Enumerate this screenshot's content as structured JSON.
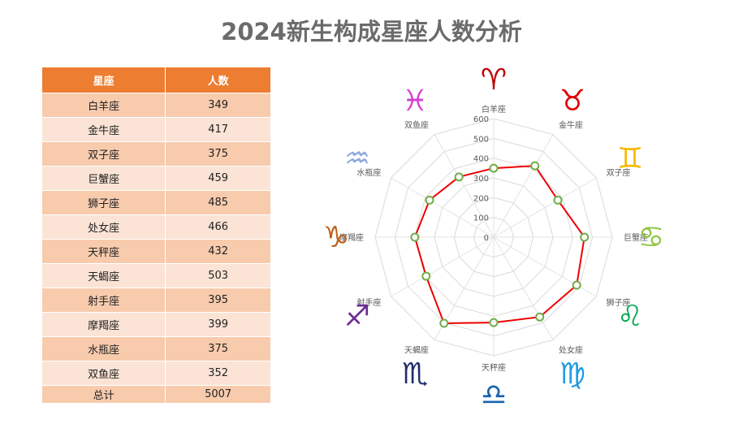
{
  "title": "2024新生构成星座人数分析",
  "table": {
    "headers": [
      "星座",
      "人数"
    ],
    "rows": [
      {
        "sign": "白羊座",
        "count": "349"
      },
      {
        "sign": "金牛座",
        "count": "417"
      },
      {
        "sign": "双子座",
        "count": "375"
      },
      {
        "sign": "巨蟹座",
        "count": "459"
      },
      {
        "sign": "狮子座",
        "count": "485"
      },
      {
        "sign": "处女座",
        "count": "466"
      },
      {
        "sign": "天秤座",
        "count": "432"
      },
      {
        "sign": "天蝎座",
        "count": "503"
      },
      {
        "sign": "射手座",
        "count": "395"
      },
      {
        "sign": "摩羯座",
        "count": "399"
      },
      {
        "sign": "水瓶座",
        "count": "375"
      },
      {
        "sign": "双鱼座",
        "count": "352"
      }
    ],
    "total_label": "总计",
    "total_value": "5007"
  },
  "chart_data": {
    "type": "radar",
    "categories": [
      "白羊座",
      "金牛座",
      "双子座",
      "巨蟹座",
      "狮子座",
      "处女座",
      "天秤座",
      "天蝎座",
      "射手座",
      "摩羯座",
      "水瓶座",
      "双鱼座"
    ],
    "values": [
      349,
      417,
      375,
      459,
      485,
      466,
      432,
      503,
      395,
      399,
      375,
      352
    ],
    "rlim": [
      0,
      600
    ],
    "ticks": [
      "0",
      "100",
      "200",
      "300",
      "400",
      "500",
      "600"
    ],
    "line_color": "#ee0000",
    "marker_color": "#70ad47",
    "symbols": [
      {
        "glyph": "♈",
        "color": "#c00000"
      },
      {
        "glyph": "♉",
        "color": "#e00000"
      },
      {
        "glyph": "♊",
        "color": "#f5b800"
      },
      {
        "glyph": "♋",
        "color": "#8dc63f"
      },
      {
        "glyph": "♌",
        "color": "#00a651"
      },
      {
        "glyph": "♍",
        "color": "#1e9be0"
      },
      {
        "glyph": "♎",
        "color": "#1565b0"
      },
      {
        "glyph": "♏",
        "color": "#1f2d6b"
      },
      {
        "glyph": "♐",
        "color": "#6a2c91"
      },
      {
        "glyph": "♑",
        "color": "#c0601a"
      },
      {
        "glyph": "♒",
        "color": "#8faadc"
      },
      {
        "glyph": "♓",
        "color": "#d63fd6"
      }
    ]
  }
}
